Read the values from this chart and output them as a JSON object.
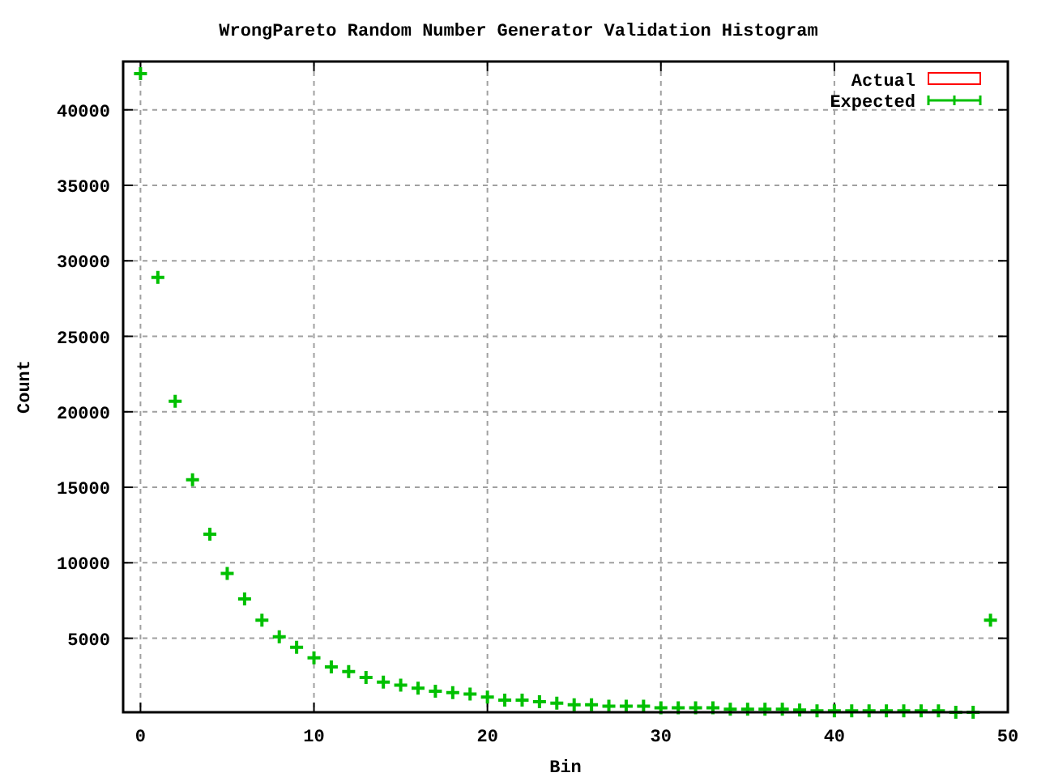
{
  "chart_data": {
    "type": "scatter",
    "title": "WrongPareto Random Number Generator Validation Histogram",
    "xlabel": "Bin",
    "ylabel": "Count",
    "x": [
      0,
      1,
      2,
      3,
      4,
      5,
      6,
      7,
      8,
      9,
      10,
      11,
      12,
      13,
      14,
      15,
      16,
      17,
      18,
      19,
      20,
      21,
      22,
      23,
      24,
      25,
      26,
      27,
      28,
      29,
      30,
      31,
      32,
      33,
      34,
      35,
      36,
      37,
      38,
      39,
      40,
      41,
      42,
      43,
      44,
      45,
      46,
      47,
      48,
      49
    ],
    "series": [
      {
        "name": "Actual",
        "type": "bar",
        "color": "#ff0000",
        "values": [
          null,
          null,
          null,
          null,
          null,
          null,
          null,
          null,
          null,
          null,
          null,
          null,
          null,
          null,
          null,
          null,
          null,
          null,
          null,
          null,
          null,
          null,
          null,
          null,
          null,
          null,
          null,
          null,
          null,
          null,
          null,
          null,
          null,
          null,
          null,
          null,
          null,
          null,
          null,
          null,
          null,
          null,
          null,
          null,
          null,
          null,
          null,
          null,
          null,
          null
        ]
      },
      {
        "name": "Expected",
        "color": "#00c000",
        "values": [
          42400,
          28900,
          20700,
          15500,
          11900,
          9300,
          7600,
          6200,
          5100,
          4400,
          3700,
          3100,
          2800,
          2400,
          2100,
          1900,
          1700,
          1500,
          1400,
          1300,
          1100,
          900,
          900,
          800,
          700,
          600,
          600,
          500,
          500,
          500,
          400,
          400,
          400,
          400,
          300,
          300,
          300,
          300,
          250,
          200,
          200,
          200,
          200,
          200,
          200,
          200,
          200,
          100,
          100,
          6200
        ]
      }
    ],
    "xlim": [
      -1,
      50
    ],
    "xticks": [
      0,
      10,
      20,
      30,
      40,
      50
    ],
    "ylim": [
      100,
      43200
    ],
    "yticks": [
      5000,
      10000,
      15000,
      20000,
      25000,
      30000,
      35000,
      40000
    ],
    "grid": true,
    "legend": "top right",
    "marker": "cross"
  }
}
